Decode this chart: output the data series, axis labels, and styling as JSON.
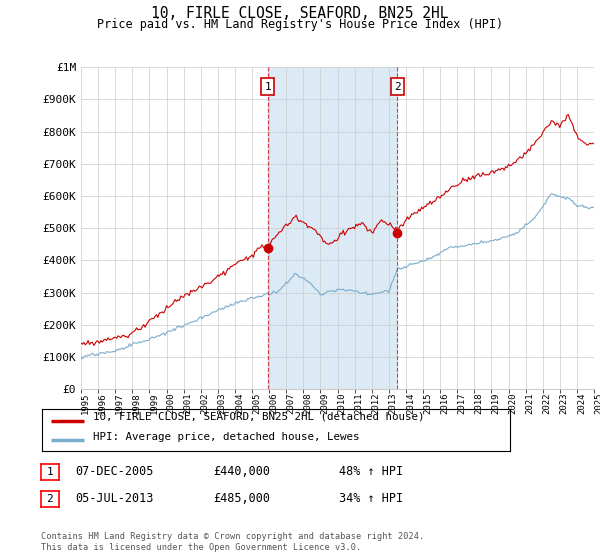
{
  "title": "10, FIRLE CLOSE, SEAFORD, BN25 2HL",
  "subtitle": "Price paid vs. HM Land Registry's House Price Index (HPI)",
  "x_start_year": 1995,
  "x_end_year": 2025,
  "y_min": 0,
  "y_max": 1000000,
  "y_ticks": [
    0,
    100000,
    200000,
    300000,
    400000,
    500000,
    600000,
    700000,
    800000,
    900000,
    1000000
  ],
  "y_tick_labels": [
    "£0",
    "£100K",
    "£200K",
    "£300K",
    "£400K",
    "£500K",
    "£600K",
    "£700K",
    "£800K",
    "£900K",
    "£1M"
  ],
  "sale1_date": 2005.92,
  "sale1_price": 440000,
  "sale1_label": "1",
  "sale1_date_str": "07-DEC-2005",
  "sale1_price_str": "£440,000",
  "sale1_hpi": "48% ↑ HPI",
  "sale2_date": 2013.5,
  "sale2_price": 485000,
  "sale2_label": "2",
  "sale2_date_str": "05-JUL-2013",
  "sale2_price_str": "£485,000",
  "sale2_hpi": "34% ↑ HPI",
  "red_line_color": "#cc0000",
  "blue_line_color": "#7aadcc",
  "shaded_region_color": "#dbeaf5",
  "grid_color": "#cccccc",
  "background_color": "#ffffff",
  "legend_line1": "10, FIRLE CLOSE, SEAFORD, BN25 2HL (detached house)",
  "legend_line2": "HPI: Average price, detached house, Lewes",
  "footer": "Contains HM Land Registry data © Crown copyright and database right 2024.\nThis data is licensed under the Open Government Licence v3.0."
}
